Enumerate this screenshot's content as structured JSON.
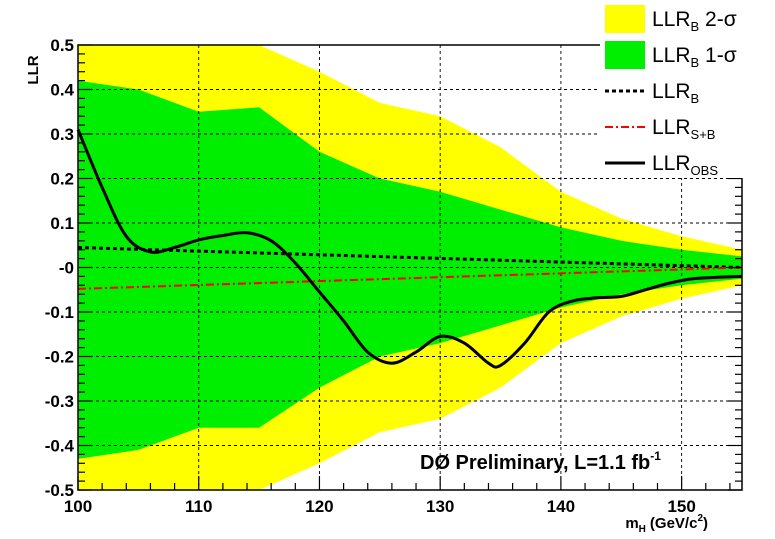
{
  "chart_data": {
    "type": "line",
    "ylabel": "LLR",
    "xlabel_main": "m",
    "xlabel_sub": "H",
    "xlabel_unit": "(GeV/c",
    "xlabel_sup": "2",
    "xlabel_close": ")",
    "xlim": [
      100,
      155
    ],
    "ylim": [
      -0.5,
      0.5
    ],
    "x_ticks": [
      100,
      110,
      120,
      130,
      140,
      150
    ],
    "x_tick_labels": [
      "100",
      "110",
      "120",
      "130",
      "140",
      "150"
    ],
    "y_ticks": [
      0.5,
      0.4,
      0.3,
      0.2,
      0.1,
      0.0,
      -0.1,
      -0.2,
      -0.3,
      -0.4,
      -0.5
    ],
    "y_tick_labels": [
      "0.5",
      "0.4",
      "0.3",
      "0.2",
      "0.1",
      "-0",
      "-0.1",
      "-0.2",
      "-0.3",
      "-0.4",
      "-0.5"
    ],
    "grid": true,
    "annotation": "DØ Preliminary, L=1.1 fb",
    "annotation_sup": "-1",
    "legend_position": "top-right",
    "legend": [
      {
        "key": "band2",
        "main": "LLR",
        "sub": "B",
        "tail": " 2-σ",
        "color": "#ffff00",
        "style": "fill"
      },
      {
        "key": "band1",
        "main": "LLR",
        "sub": "B",
        "tail": " 1-σ",
        "color": "#00ee00",
        "style": "fill"
      },
      {
        "key": "llrb",
        "main": "LLR",
        "sub": "B",
        "tail": "",
        "color": "#000000",
        "style": "dotted"
      },
      {
        "key": "llrsb",
        "main": "LLR",
        "sub": "S+B",
        "tail": "",
        "color": "#ff0000",
        "style": "dashdot"
      },
      {
        "key": "llrobs",
        "main": "LLR",
        "sub": "OBS",
        "tail": "",
        "color": "#000000",
        "style": "solid"
      }
    ],
    "band_2sigma": {
      "x": [
        100,
        105,
        110,
        115,
        120,
        125,
        130,
        135,
        140,
        145,
        150,
        155
      ],
      "upper": [
        0.5,
        0.5,
        0.5,
        0.5,
        0.44,
        0.37,
        0.34,
        0.27,
        0.17,
        0.11,
        0.07,
        0.04
      ],
      "lower": [
        -0.5,
        -0.5,
        -0.5,
        -0.5,
        -0.44,
        -0.37,
        -0.34,
        -0.27,
        -0.17,
        -0.11,
        -0.07,
        -0.04
      ]
    },
    "band_1sigma": {
      "x": [
        100,
        105,
        110,
        115,
        120,
        125,
        130,
        135,
        140,
        145,
        150,
        155
      ],
      "upper": [
        0.42,
        0.4,
        0.35,
        0.36,
        0.26,
        0.2,
        0.17,
        0.13,
        0.09,
        0.06,
        0.04,
        0.025
      ],
      "lower": [
        -0.43,
        -0.41,
        -0.36,
        -0.36,
        -0.27,
        -0.2,
        -0.17,
        -0.13,
        -0.09,
        -0.06,
        -0.04,
        -0.025
      ]
    },
    "series": [
      {
        "key": "llrb",
        "x": [
          100,
          155
        ],
        "y": [
          0.045,
          0.0
        ]
      },
      {
        "key": "llrsb",
        "x": [
          100,
          155
        ],
        "y": [
          -0.048,
          0.0
        ]
      },
      {
        "key": "llrobs",
        "x": [
          100,
          102,
          104,
          106,
          108,
          110,
          112,
          114,
          116,
          118,
          120,
          122,
          124,
          126,
          128,
          130,
          132,
          134,
          135,
          137,
          139,
          141,
          143,
          145,
          147,
          149,
          151,
          153,
          155
        ],
        "y": [
          0.31,
          0.18,
          0.07,
          0.035,
          0.045,
          0.062,
          0.072,
          0.078,
          0.06,
          0.01,
          -0.055,
          -0.12,
          -0.19,
          -0.215,
          -0.19,
          -0.155,
          -0.17,
          -0.215,
          -0.22,
          -0.17,
          -0.1,
          -0.075,
          -0.068,
          -0.065,
          -0.05,
          -0.035,
          -0.025,
          -0.022,
          -0.02
        ]
      }
    ]
  }
}
